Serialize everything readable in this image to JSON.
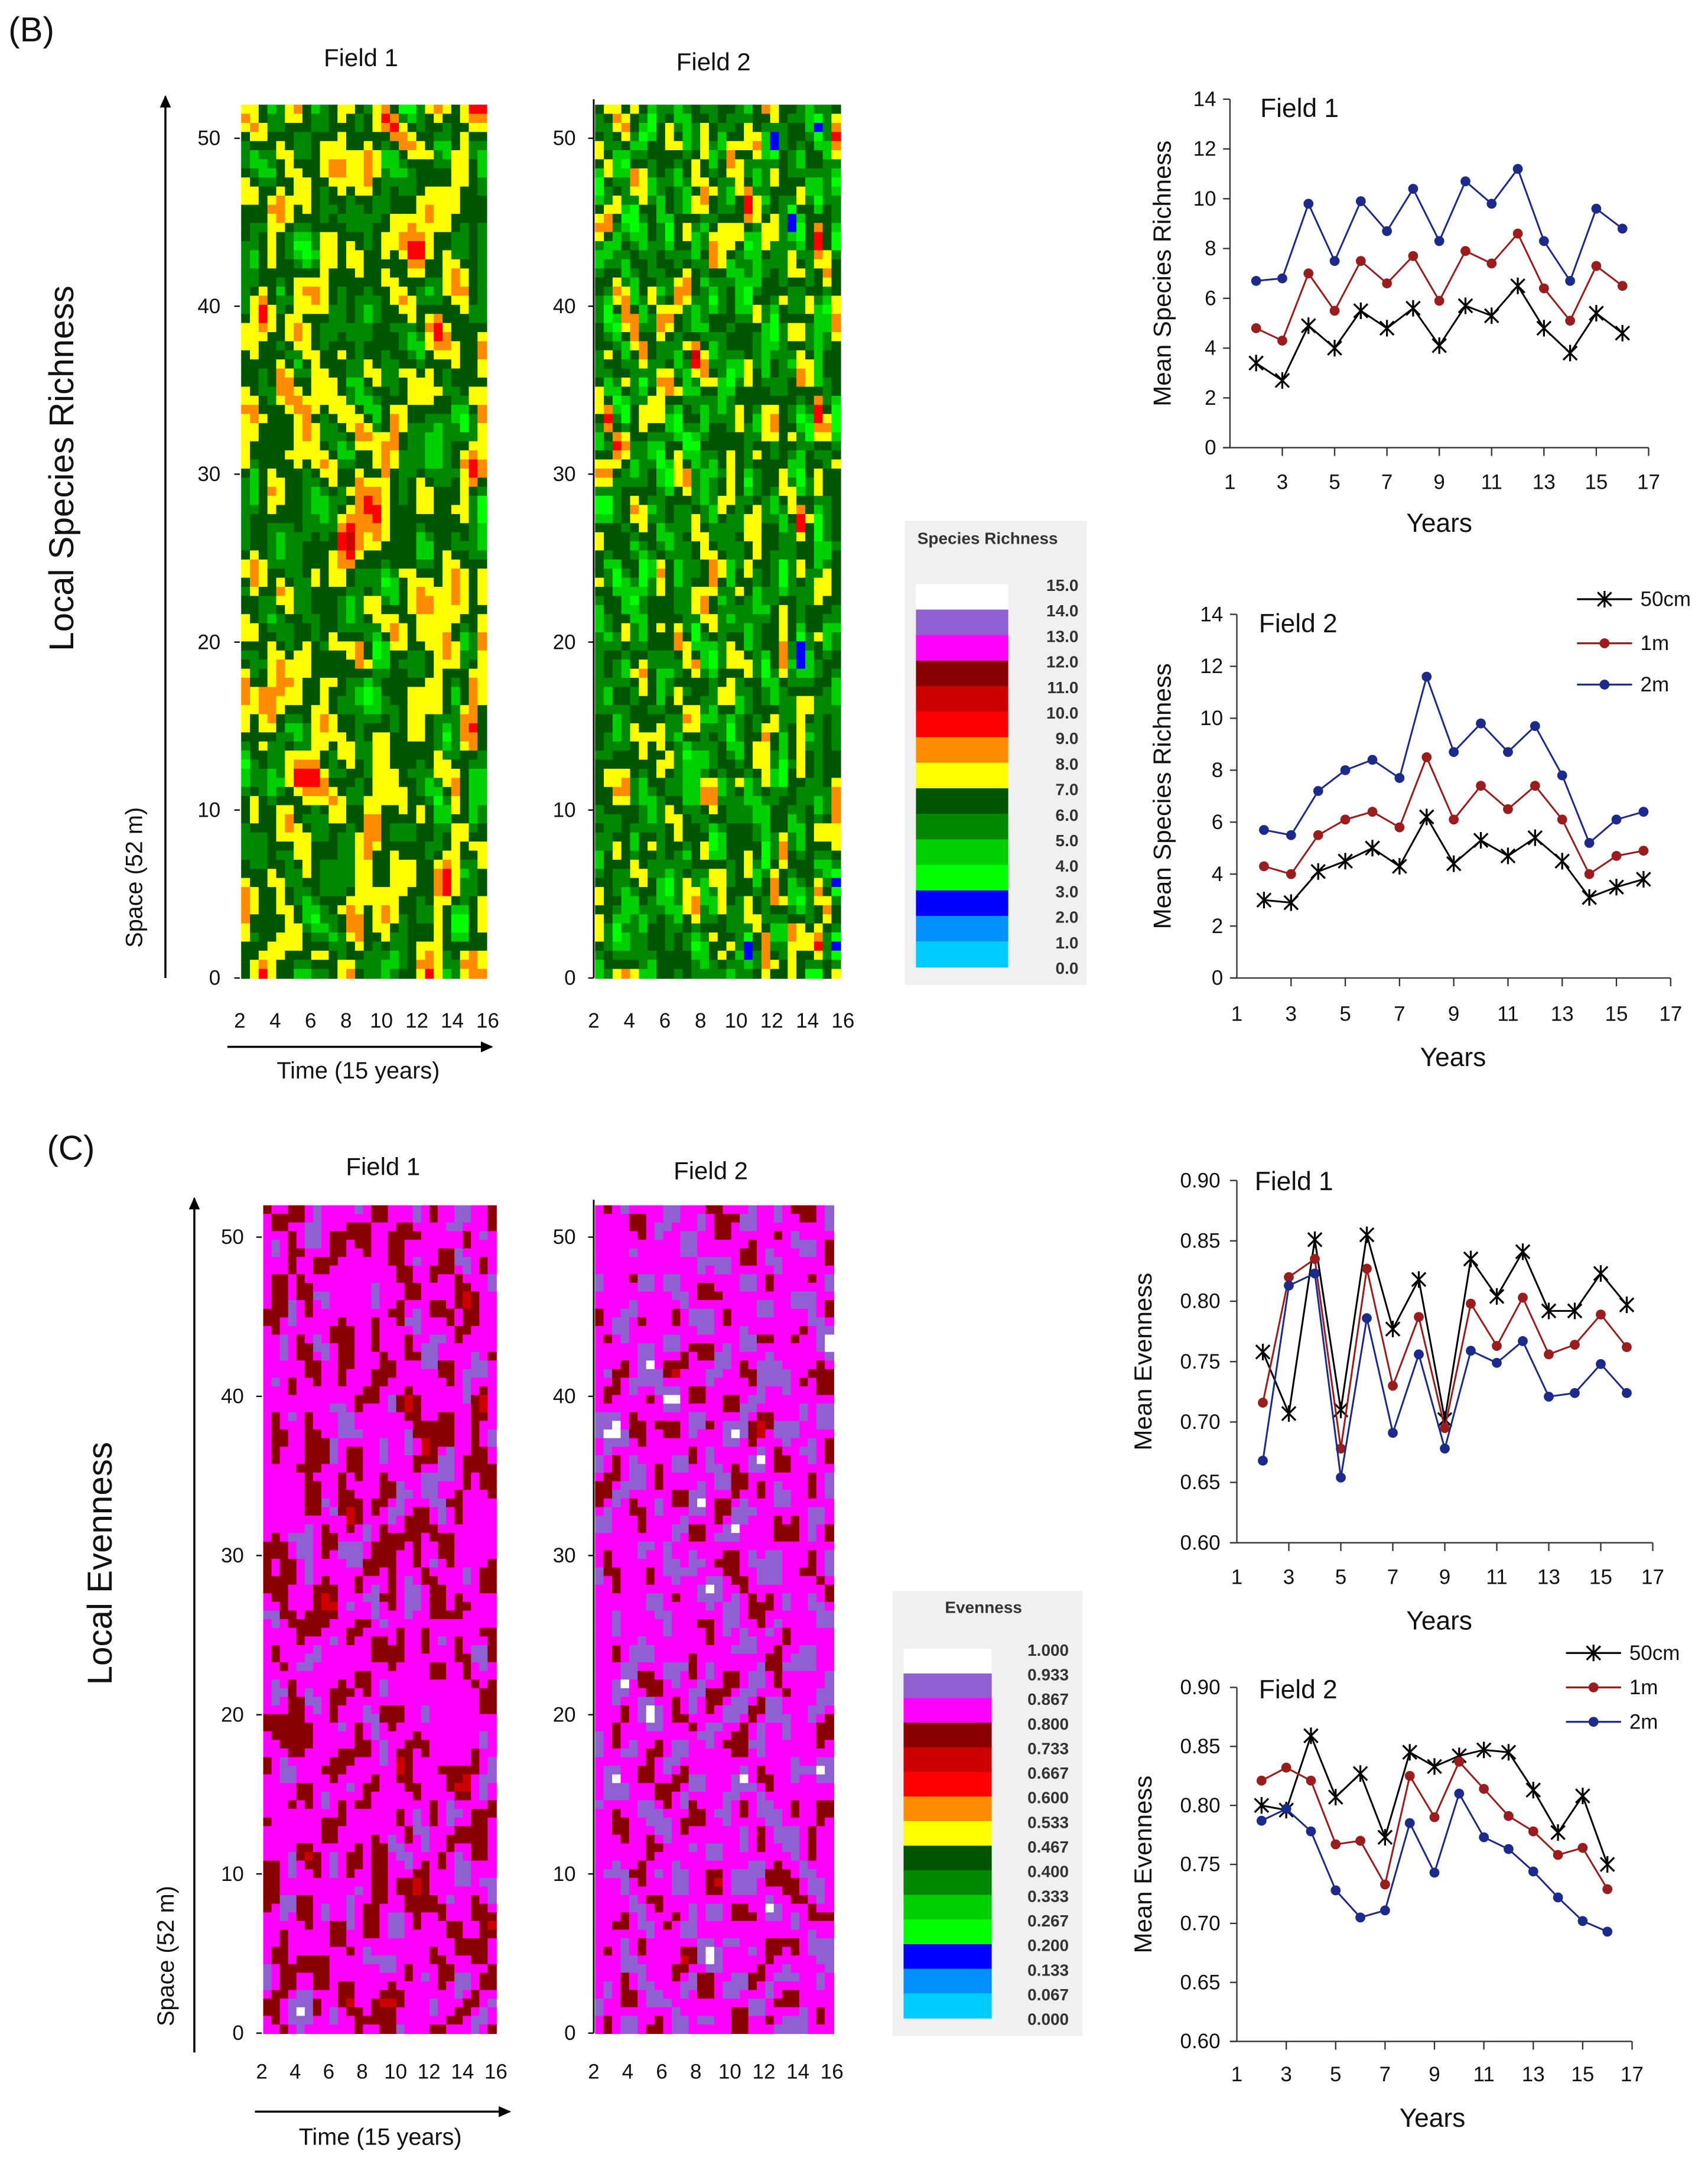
{
  "panels": {
    "B": "(B)",
    "C": "(C)"
  },
  "richness_section": {
    "ylabel_main": "Local Species Richness",
    "ylabel_space": "Space (52 m)",
    "xlabel_time": "Time (15 years)",
    "field1_title": "Field 1",
    "field2_title": "Field 2"
  },
  "evenness_section": {
    "ylabel_main": "Local Evenness",
    "ylabel_space": "Space (52 m)",
    "xlabel_time": "Time (15 years)",
    "field1_title": "Field 1",
    "field2_title": "Field 2"
  },
  "legends": {
    "richness": {
      "title": "Species Richness",
      "labels": [
        "15.0",
        "14.0",
        "13.0",
        "12.0",
        "11.0",
        "10.0",
        "9.0",
        "8.0",
        "7.0",
        "6.0",
        "5.0",
        "4.0",
        "3.0",
        "2.0",
        "1.0",
        "0.0"
      ],
      "colors": [
        "#ffffff",
        "#9060d0",
        "#ff00ff",
        "#880000",
        "#cc0000",
        "#ff0000",
        "#ff8c00",
        "#ffff00",
        "#005500",
        "#008800",
        "#00d000",
        "#00ff00",
        "#0000ff",
        "#0090ff",
        "#00ccff"
      ]
    },
    "evenness": {
      "title": "Evenness",
      "labels": [
        "1.000",
        "0.933",
        "0.867",
        "0.800",
        "0.733",
        "0.667",
        "0.600",
        "0.533",
        "0.467",
        "0.400",
        "0.333",
        "0.267",
        "0.200",
        "0.133",
        "0.067",
        "0.000"
      ],
      "colors": [
        "#ffffff",
        "#9060d0",
        "#ff00ff",
        "#880000",
        "#cc0000",
        "#ff0000",
        "#ff8c00",
        "#ffff00",
        "#005500",
        "#008800",
        "#00d000",
        "#00ff00",
        "#0000ff",
        "#0090ff",
        "#00ccff"
      ]
    }
  },
  "series_colors": {
    "50cm": "#000000",
    "1m": "#9b1c1c",
    "2m": "#1c2a8c"
  },
  "chart_data": [
    {
      "id": "richness-field1-map",
      "type": "heatmap",
      "title": "Field 1",
      "xlabel": "Time (15 years)",
      "ylabel": "Space (52 m)",
      "xticks": [
        "2",
        "4",
        "6",
        "8",
        "10",
        "12",
        "14",
        "16"
      ],
      "yticks": [
        "0",
        "10",
        "20",
        "30",
        "40",
        "50"
      ],
      "xlim": [
        2,
        16
      ],
      "ylim": [
        0,
        52
      ],
      "vmin": 0,
      "vmax": 15,
      "mean_level": 6.6
    },
    {
      "id": "richness-field2-map",
      "type": "heatmap",
      "title": "Field 2",
      "xlabel": "",
      "ylabel": "",
      "xticks": [
        "2",
        "4",
        "6",
        "8",
        "10",
        "12",
        "14",
        "16"
      ],
      "yticks": [
        "0",
        "10",
        "20",
        "30",
        "40",
        "50"
      ],
      "xlim": [
        2,
        16
      ],
      "ylim": [
        0,
        52
      ],
      "vmin": 0,
      "vmax": 15,
      "mean_level": 6.0
    },
    {
      "id": "richness-field1-line",
      "type": "line",
      "title": "Field 1",
      "xlabel": "Years",
      "ylabel": "Mean Species Richness",
      "xlim": [
        1,
        17
      ],
      "ylim": [
        0,
        14
      ],
      "xticks": [
        "1",
        "3",
        "5",
        "7",
        "9",
        "11",
        "13",
        "15",
        "17"
      ],
      "yticks": [
        "0",
        "2",
        "4",
        "6",
        "8",
        "10",
        "12",
        "14"
      ],
      "x": [
        2,
        3,
        4,
        5,
        6,
        7,
        8,
        9,
        10,
        11,
        12,
        13,
        14,
        15,
        16
      ],
      "series": [
        {
          "name": "50cm",
          "marker": "asterisk",
          "values": [
            3.4,
            2.7,
            4.9,
            4.0,
            5.5,
            4.8,
            5.6,
            4.1,
            5.7,
            5.3,
            6.5,
            4.8,
            3.8,
            5.4,
            4.6
          ]
        },
        {
          "name": "1m",
          "marker": "circle",
          "values": [
            4.8,
            4.3,
            7.0,
            5.5,
            7.5,
            6.6,
            7.7,
            5.9,
            7.9,
            7.4,
            8.6,
            6.4,
            5.1,
            7.3,
            6.5
          ]
        },
        {
          "name": "2m",
          "marker": "circle",
          "values": [
            6.7,
            6.8,
            9.8,
            7.5,
            9.9,
            8.7,
            10.4,
            8.3,
            10.7,
            9.8,
            11.2,
            8.3,
            6.7,
            9.6,
            8.8
          ]
        }
      ],
      "legend": false
    },
    {
      "id": "richness-field2-line",
      "type": "line",
      "title": "Field 2",
      "xlabel": "Years",
      "ylabel": "Mean Species Richness",
      "xlim": [
        1,
        17
      ],
      "ylim": [
        0,
        14
      ],
      "xticks": [
        "1",
        "3",
        "5",
        "7",
        "9",
        "11",
        "13",
        "15",
        "17"
      ],
      "yticks": [
        "0",
        "2",
        "4",
        "6",
        "8",
        "10",
        "12",
        "14"
      ],
      "x": [
        2,
        3,
        4,
        5,
        6,
        7,
        8,
        9,
        10,
        11,
        12,
        13,
        14,
        15,
        16
      ],
      "series": [
        {
          "name": "50cm",
          "marker": "asterisk",
          "values": [
            3.0,
            2.9,
            4.1,
            4.5,
            5.0,
            4.3,
            6.2,
            4.4,
            5.3,
            4.7,
            5.4,
            4.5,
            3.1,
            3.5,
            3.8
          ]
        },
        {
          "name": "1m",
          "marker": "circle",
          "values": [
            4.3,
            4.0,
            5.5,
            6.1,
            6.4,
            5.8,
            8.5,
            6.1,
            7.4,
            6.5,
            7.4,
            6.1,
            4.0,
            4.7,
            4.9
          ]
        },
        {
          "name": "2m",
          "marker": "circle",
          "values": [
            5.7,
            5.5,
            7.2,
            8.0,
            8.4,
            7.7,
            11.6,
            8.7,
            9.8,
            8.7,
            9.7,
            7.8,
            5.2,
            6.1,
            6.4
          ]
        }
      ],
      "legend": true,
      "legend_position": "top-right"
    },
    {
      "id": "evenness-field1-map",
      "type": "heatmap",
      "title": "Field 1",
      "xlabel": "Time (15 years)",
      "ylabel": "Space (52 m)",
      "xticks": [
        "2",
        "4",
        "6",
        "8",
        "10",
        "12",
        "14",
        "16"
      ],
      "yticks": [
        "0",
        "10",
        "20",
        "30",
        "40",
        "50"
      ],
      "xlim": [
        2,
        16
      ],
      "ylim": [
        0,
        52
      ],
      "vmin": 0,
      "vmax": 1,
      "mean_level": 0.82
    },
    {
      "id": "evenness-field2-map",
      "type": "heatmap",
      "title": "Field 2",
      "xlabel": "",
      "ylabel": "",
      "xticks": [
        "2",
        "4",
        "6",
        "8",
        "10",
        "12",
        "14",
        "16"
      ],
      "yticks": [
        "0",
        "10",
        "20",
        "30",
        "40",
        "50"
      ],
      "xlim": [
        2,
        16
      ],
      "ylim": [
        0,
        52
      ],
      "vmin": 0,
      "vmax": 1,
      "mean_level": 0.84
    },
    {
      "id": "evenness-field1-line",
      "type": "line",
      "title": "Field 1",
      "xlabel": "Years",
      "ylabel": "Mean Evenness",
      "xlim": [
        1,
        17
      ],
      "ylim": [
        0.6,
        0.9
      ],
      "xticks": [
        "1",
        "3",
        "5",
        "7",
        "9",
        "11",
        "13",
        "15",
        "17"
      ],
      "yticks": [
        "0.60",
        "0.65",
        "0.70",
        "0.75",
        "0.80",
        "0.85",
        "0.90"
      ],
      "x": [
        2,
        3,
        4,
        5,
        6,
        7,
        8,
        9,
        10,
        11,
        12,
        13,
        14,
        15,
        16
      ],
      "series": [
        {
          "name": "50cm",
          "marker": "asterisk",
          "values": [
            0.758,
            0.707,
            0.851,
            0.71,
            0.855,
            0.777,
            0.818,
            0.702,
            0.835,
            0.804,
            0.841,
            0.792,
            0.792,
            0.823,
            0.797
          ]
        },
        {
          "name": "1m",
          "marker": "circle",
          "values": [
            0.716,
            0.82,
            0.835,
            0.678,
            0.827,
            0.73,
            0.787,
            0.695,
            0.798,
            0.763,
            0.803,
            0.756,
            0.764,
            0.789,
            0.762
          ]
        },
        {
          "name": "2m",
          "marker": "circle",
          "values": [
            0.668,
            0.813,
            0.823,
            0.654,
            0.786,
            0.691,
            0.756,
            0.678,
            0.759,
            0.749,
            0.767,
            0.721,
            0.724,
            0.748,
            0.724
          ]
        }
      ],
      "legend": false
    },
    {
      "id": "evenness-field2-line",
      "type": "line",
      "title": "Field 2",
      "xlabel": "Years",
      "ylabel": "Mean Evenness",
      "xlim": [
        1,
        17
      ],
      "ylim": [
        0.6,
        0.9
      ],
      "xticks": [
        "1",
        "3",
        "5",
        "7",
        "9",
        "11",
        "13",
        "15",
        "17"
      ],
      "yticks": [
        "0.60",
        "0.65",
        "0.70",
        "0.75",
        "0.80",
        "0.85",
        "0.90"
      ],
      "x": [
        2,
        3,
        4,
        5,
        6,
        7,
        8,
        9,
        10,
        11,
        12,
        13,
        14,
        15,
        16
      ],
      "series": [
        {
          "name": "50cm",
          "marker": "asterisk",
          "values": [
            0.8,
            0.796,
            0.859,
            0.807,
            0.827,
            0.773,
            0.845,
            0.833,
            0.842,
            0.847,
            0.845,
            0.813,
            0.777,
            0.808,
            0.75
          ]
        },
        {
          "name": "1m",
          "marker": "circle",
          "values": [
            0.821,
            0.832,
            0.821,
            0.767,
            0.77,
            0.733,
            0.825,
            0.79,
            0.837,
            0.814,
            0.791,
            0.778,
            0.758,
            0.764,
            0.729
          ]
        },
        {
          "name": "2m",
          "marker": "circle",
          "values": [
            0.787,
            0.797,
            0.778,
            0.728,
            0.705,
            0.711,
            0.785,
            0.743,
            0.81,
            0.773,
            0.763,
            0.744,
            0.722,
            0.702,
            0.693
          ]
        }
      ],
      "legend": true,
      "legend_position": "top-right"
    }
  ]
}
